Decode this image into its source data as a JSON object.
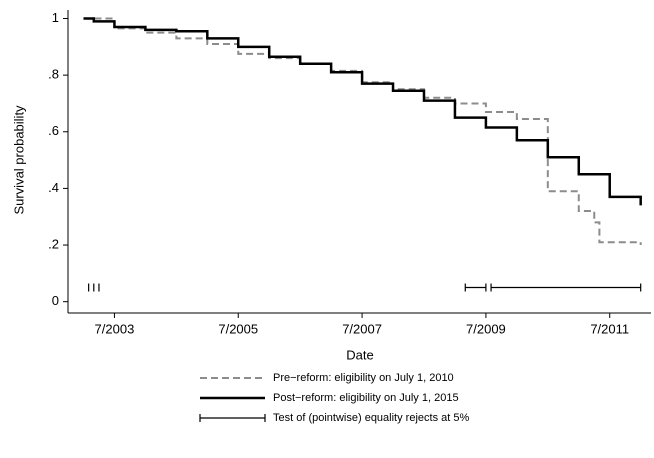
{
  "chart_data": {
    "type": "step",
    "x_label": "Date",
    "y_label": "Survival probability",
    "xlim": [
      "2002-10",
      "2012-03"
    ],
    "ylim": [
      -0.04,
      1.03
    ],
    "xticks": [
      {
        "value": "2003-07",
        "label": "7/2003"
      },
      {
        "value": "2005-07",
        "label": "7/2005"
      },
      {
        "value": "2007-07",
        "label": "7/2007"
      },
      {
        "value": "2009-07",
        "label": "7/2009"
      },
      {
        "value": "2011-07",
        "label": "7/2011"
      }
    ],
    "yticks": [
      0,
      {
        "value": 0.2,
        "label": ".2"
      },
      {
        "value": 0.4,
        "label": ".4"
      },
      {
        "value": 0.6,
        "label": ".6"
      },
      {
        "value": 0.8,
        "label": ".8"
      },
      1
    ],
    "series": [
      {
        "name": "Pre−reform: eligibility on July 1, 2010",
        "color": "#8c8c8c",
        "dash": true,
        "x": [
          "2003-01",
          "2003-07",
          "2004-01",
          "2004-07",
          "2005-01",
          "2005-07",
          "2006-01",
          "2006-07",
          "2007-01",
          "2007-07",
          "2008-01",
          "2008-07",
          "2009-01",
          "2009-07",
          "2010-01",
          "2010-07",
          "2011-01",
          "2011-04",
          "2011-05",
          "2012-01"
        ],
        "values": [
          1.0,
          0.965,
          0.95,
          0.93,
          0.91,
          0.875,
          0.86,
          0.84,
          0.815,
          0.775,
          0.75,
          0.72,
          0.7,
          0.67,
          0.645,
          0.39,
          0.32,
          0.28,
          0.21,
          0.2
        ]
      },
      {
        "name": "Post−reform: eligibility on July 1, 2015",
        "color": "#000000",
        "dash": false,
        "x": [
          "2003-01",
          "2003-03",
          "2003-07",
          "2004-01",
          "2004-07",
          "2005-01",
          "2005-07",
          "2006-01",
          "2006-07",
          "2007-01",
          "2007-07",
          "2008-01",
          "2008-07",
          "2009-01",
          "2009-07",
          "2010-01",
          "2010-07",
          "2011-01",
          "2011-07",
          "2012-01"
        ],
        "values": [
          1.0,
          0.99,
          0.97,
          0.96,
          0.955,
          0.93,
          0.9,
          0.865,
          0.84,
          0.81,
          0.77,
          0.745,
          0.71,
          0.65,
          0.615,
          0.57,
          0.51,
          0.45,
          0.37,
          0.34
        ]
      }
    ],
    "test": {
      "name": "Test of (pointwise) equality rejects at 5%",
      "color": "#000000",
      "level": 0.05,
      "intervals": [
        [
          "2003-02",
          "2003-02"
        ],
        [
          "2003-03",
          "2003-03"
        ],
        [
          "2003-04",
          "2003-04"
        ],
        [
          "2009-03",
          "2009-07"
        ],
        [
          "2009-08",
          "2012-01"
        ]
      ]
    }
  }
}
